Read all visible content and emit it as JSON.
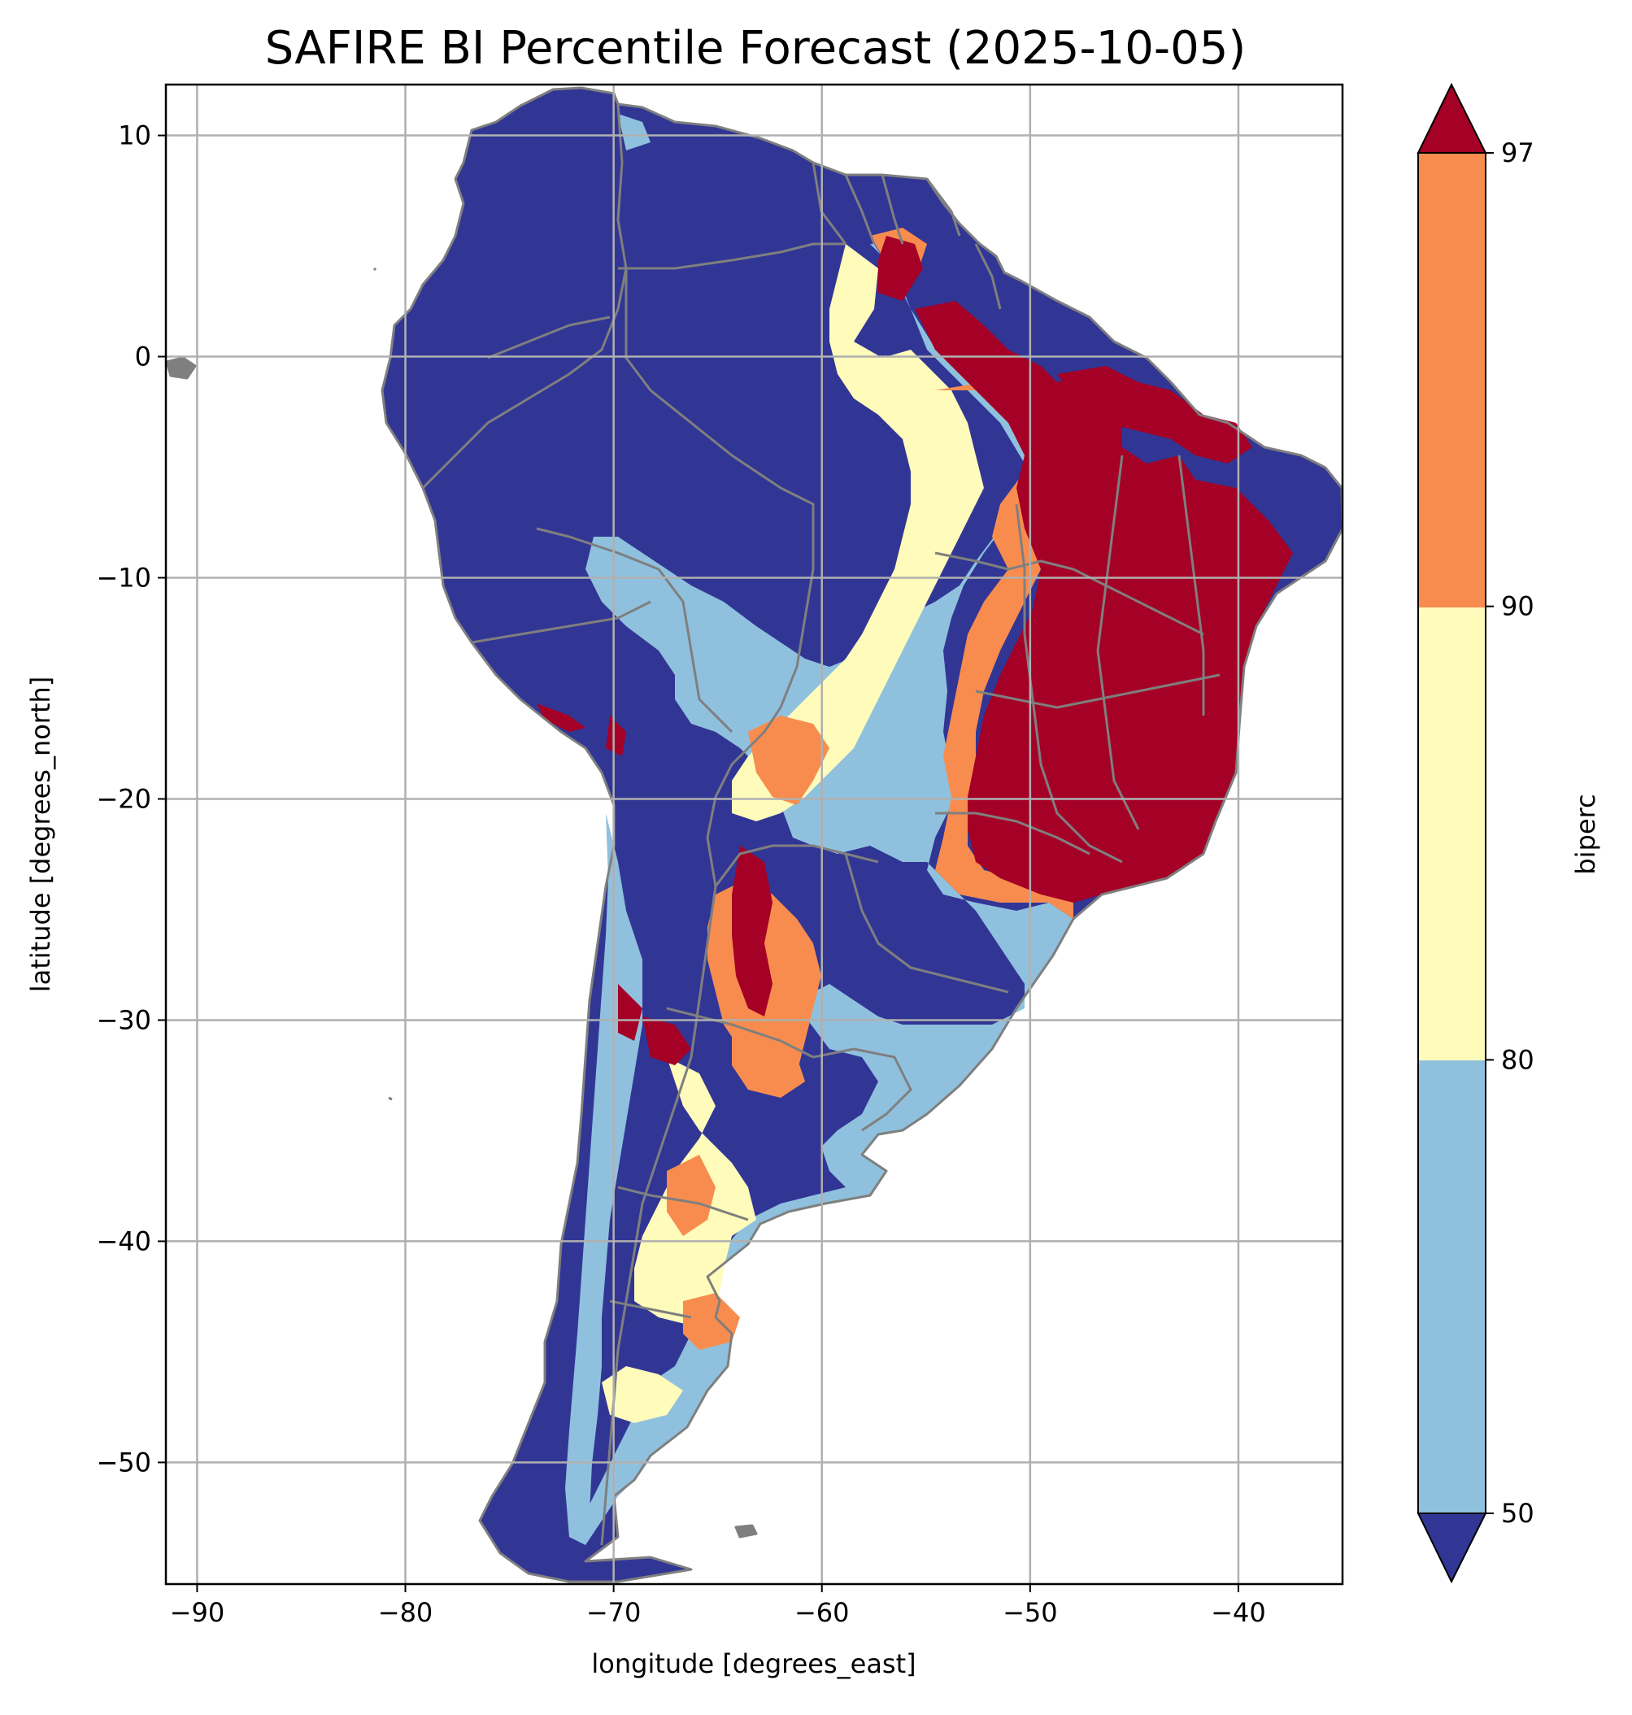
{
  "chart_data": {
    "type": "heatmap",
    "title": "SAFIRE BI Percentile Forecast (2025-10-05)",
    "xlabel": "longitude [degrees_east]",
    "ylabel": "latitude [degrees_north]",
    "xlim": [
      -91.5,
      -35
    ],
    "ylim": [
      -55.5,
      12.3
    ],
    "xticks": [
      -90,
      -80,
      -70,
      -60,
      -50,
      -40
    ],
    "xtick_labels": [
      "−90",
      "−80",
      "−70",
      "−60",
      "−50",
      "−40"
    ],
    "yticks": [
      10,
      0,
      -10,
      -20,
      -30,
      -40,
      -50
    ],
    "ytick_labels": [
      "10",
      "0",
      "−10",
      "−20",
      "−30",
      "−40",
      "−50"
    ],
    "grid": true,
    "colorbar": {
      "label": "biperc",
      "ticks": [
        50,
        80,
        90,
        97
      ],
      "tick_labels": [
        "50",
        "80",
        "90",
        "97"
      ],
      "extend": "both",
      "bins": [
        {
          "range": "<50",
          "color": "#313695"
        },
        {
          "range": "50-80",
          "color": "#8fc1de"
        },
        {
          "range": "80-90",
          "color": "#fefbbb"
        },
        {
          "range": "90-97",
          "color": "#f88c4f"
        },
        {
          "range": ">97",
          "color": "#a50026"
        }
      ]
    },
    "regions": [
      {
        "name": "",
        "level": ">97",
        "color": "#a50026"
      },
      {
        "name": "",
        "level": "90-97",
        "color": "#f88c4f"
      },
      {
        "name": "",
        "level": "80-90",
        "color": "#fefbbb"
      },
      {
        "name": "",
        "level": "50-80",
        "color": "#8fc1de"
      },
      {
        "name": "",
        "level": "<50",
        "color": "#313695"
      }
    ],
    "border_color": "#808080",
    "grid_color": "#b0b0b0"
  }
}
